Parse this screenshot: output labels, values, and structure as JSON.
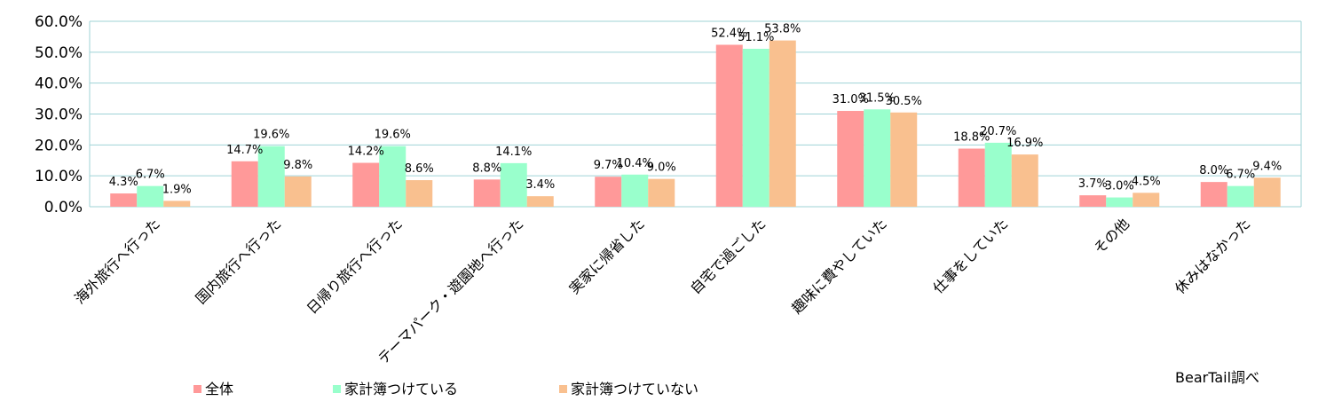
{
  "chart_data": {
    "type": "bar",
    "categories": [
      "海外旅行へ行った",
      "国内旅行へ行った",
      "日帰り旅行へ行った",
      "テーマパーク・遊園地へ行った",
      "実家に帰省した",
      "自宅で過ごした",
      "趣味に費やしていた",
      "仕事をしていた",
      "その他",
      "休みはなかった"
    ],
    "series": [
      {
        "name": "全体",
        "color": "#ff9999",
        "values": [
          4.3,
          14.7,
          14.2,
          8.8,
          9.7,
          52.4,
          31.0,
          18.8,
          3.7,
          8.0
        ],
        "labels": [
          "4.3%",
          "14.7%",
          "14.2%",
          "8.8%",
          "9.7%",
          "52.4%",
          "31.0%",
          "18.8%",
          "3.7%",
          "8.0%"
        ]
      },
      {
        "name": "家計簿つけている",
        "color": "#99ffcc",
        "values": [
          6.7,
          19.6,
          19.6,
          14.1,
          10.4,
          51.1,
          31.5,
          20.7,
          3.0,
          6.7
        ],
        "labels": [
          "6.7%",
          "19.6%",
          "19.6%",
          "14.1%",
          "10.4%",
          "51.1%",
          "31.5%",
          "20.7%",
          "3.0%",
          "6.7%"
        ]
      },
      {
        "name": "家計簿つけていない",
        "color": "#f9c08f",
        "values": [
          1.9,
          9.8,
          8.6,
          3.4,
          9.0,
          53.8,
          30.5,
          16.9,
          4.5,
          9.4
        ],
        "labels": [
          "1.9%",
          "9.8%",
          "8.6%",
          "3.4%",
          "9.0%",
          "53.8%",
          "30.5%",
          "16.9%",
          "4.5%",
          "9.4%"
        ]
      }
    ],
    "ylim": [
      0,
      60
    ],
    "yticks": [
      "0.0%",
      "10.0%",
      "20.0%",
      "30.0%",
      "40.0%",
      "50.0%",
      "60.0%"
    ],
    "grid": true,
    "legend_position": "bottom-left",
    "source": "BearTail調べ"
  }
}
